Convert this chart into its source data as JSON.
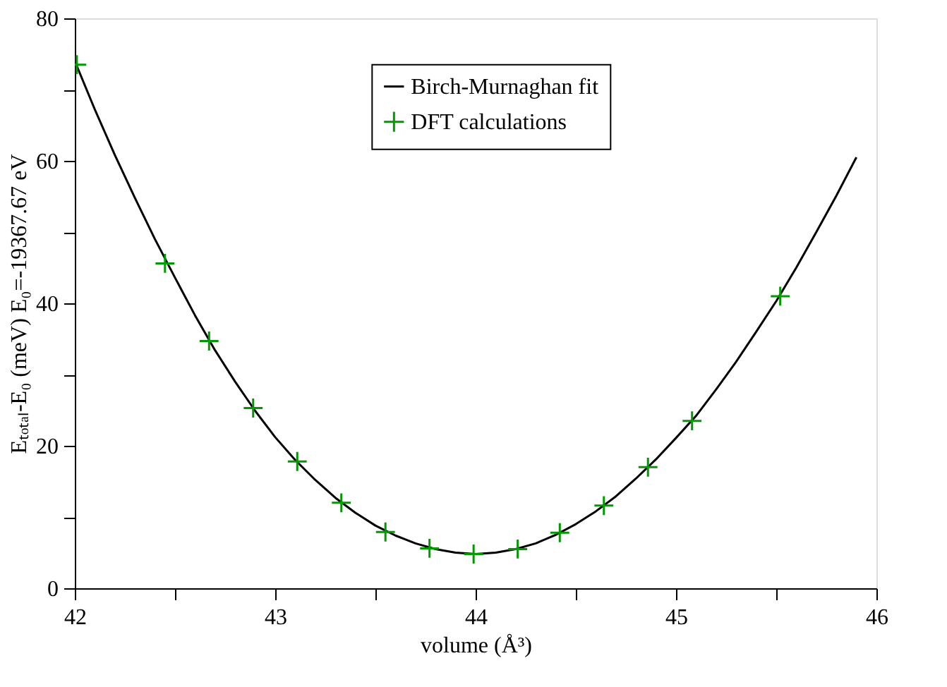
{
  "chart_data": {
    "type": "line",
    "xlabel": "volume (Å³)",
    "ylabel": "Eₜₒₜₐₗ-E₀ (meV) E₀=-19367.67 eV",
    "xlim": [
      42,
      46
    ],
    "ylim": [
      0,
      80
    ],
    "xticks": [
      42,
      {
        "value": 42.5,
        "label": null
      },
      43,
      {
        "value": 43.5,
        "label": null
      },
      44,
      {
        "value": 44.5,
        "label": null
      },
      45,
      {
        "value": 45.5,
        "label": null
      },
      46
    ],
    "yticks": [
      0,
      {
        "value": 10,
        "label": null
      },
      20,
      {
        "value": 30,
        "label": null
      },
      40,
      {
        "value": 50,
        "label": null
      },
      60,
      {
        "value": 70,
        "label": null
      },
      80
    ],
    "grid": false,
    "legend": "top",
    "series": [
      {
        "name": "Birch-Murnaghan fit",
        "color": "#000000",
        "marker": "none",
        "line_style": "solid",
        "x": [
          42.0,
          42.1,
          42.2,
          42.3,
          42.4,
          42.5,
          42.6,
          42.7,
          42.8,
          42.9,
          43.0,
          43.1,
          43.2,
          43.3,
          43.4,
          43.5,
          43.6,
          43.7,
          43.8,
          43.9,
          44.0,
          44.1,
          44.2,
          44.3,
          44.4,
          44.5,
          44.6,
          44.7,
          44.8,
          44.9,
          45.0,
          45.1,
          45.2,
          45.3,
          45.4,
          45.5,
          45.6,
          45.7,
          45.8,
          45.9
        ],
        "values": [
          74.0,
          67.2,
          60.8,
          54.8,
          49.0,
          43.6,
          38.3,
          33.4,
          29.0,
          24.9,
          21.2,
          18.0,
          15.2,
          12.7,
          10.6,
          8.8,
          7.4,
          6.3,
          5.5,
          5.0,
          4.8,
          5.0,
          5.5,
          6.3,
          7.5,
          9.0,
          10.8,
          12.9,
          15.4,
          18.1,
          21.1,
          24.2,
          27.9,
          31.8,
          36.0,
          40.3,
          45.0,
          50.0,
          55.1,
          60.5
        ]
      },
      {
        "name": "DFT calculations",
        "color": "#009900",
        "type": "scatter",
        "marker": "cross",
        "x": [
          42.01,
          42.45,
          42.67,
          42.89,
          43.11,
          43.33,
          43.55,
          43.77,
          43.99,
          44.21,
          44.42,
          44.64,
          44.86,
          45.08,
          45.52
        ],
        "values": [
          73.5,
          45.6,
          34.7,
          25.3,
          17.8,
          12.0,
          7.9,
          5.6,
          4.8,
          5.5,
          7.8,
          11.6,
          17.0,
          23.5,
          41.0
        ]
      }
    ]
  }
}
